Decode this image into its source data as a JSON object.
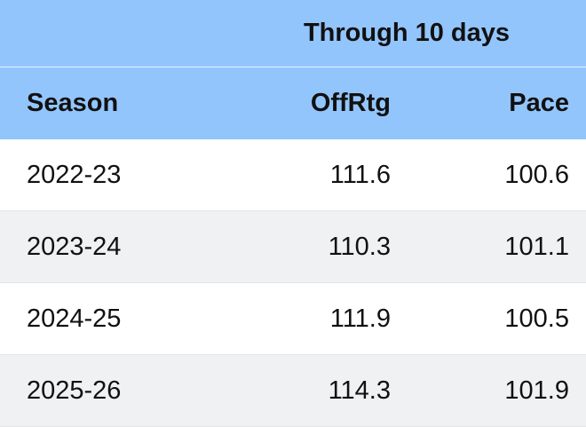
{
  "chart_data": {
    "type": "table",
    "group_header": "Through 10 days",
    "columns": [
      "Season",
      "OffRtg",
      "Pace"
    ],
    "rows": [
      [
        "2022-23",
        "111.6",
        "100.6"
      ],
      [
        "2023-24",
        "110.3",
        "101.1"
      ],
      [
        "2024-25",
        "111.9",
        "100.5"
      ],
      [
        "2025-26",
        "114.3",
        "101.9"
      ]
    ]
  },
  "colors": {
    "header_bg": "#93c5fd",
    "row_alt_bg": "#f0f1f3",
    "row_bg": "#ffffff"
  }
}
